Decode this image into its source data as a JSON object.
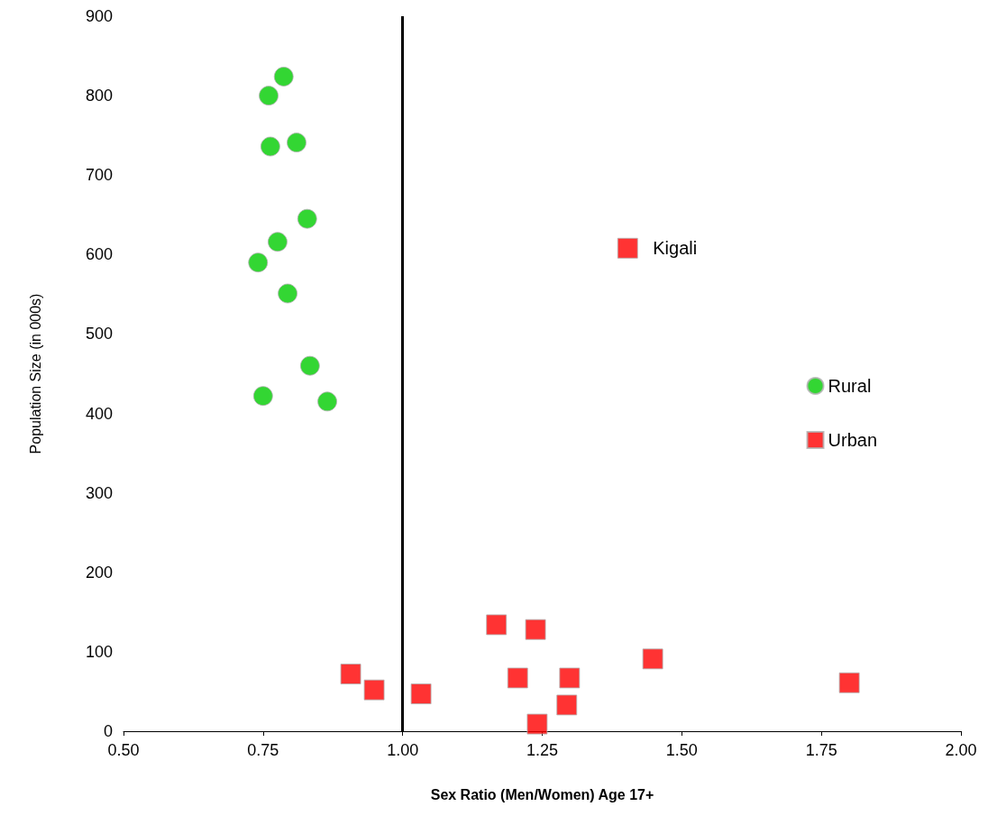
{
  "chart_data": {
    "type": "scatter",
    "xlabel": "Sex Ratio (Men/Women) Age 17+",
    "ylabel": "Population Size (in 000s)",
    "xlim": [
      0.5,
      2.0
    ],
    "xticks": [
      {
        "value": 0.5,
        "label": "0.50"
      },
      {
        "value": 0.75,
        "label": "0.75"
      },
      {
        "value": 1.0,
        "label": "1.00"
      },
      {
        "value": 1.25,
        "label": "1.25"
      },
      {
        "value": 1.5,
        "label": "1.50"
      },
      {
        "value": 1.75,
        "label": "1.75"
      },
      {
        "value": 2.0,
        "label": "2.00"
      }
    ],
    "ylim": [
      0,
      900
    ],
    "yticks": [
      0,
      100,
      200,
      300,
      400,
      500,
      600,
      700,
      800,
      900
    ],
    "grid": false,
    "legend": "right",
    "ref_lines": [
      {
        "axis": "x",
        "value": 1.0,
        "color": "#000000"
      }
    ],
    "series": [
      {
        "name": "Rural",
        "color": "#00cc00",
        "marker": "circle",
        "x": [
          0.787,
          0.76,
          0.763,
          0.81,
          0.829,
          0.776,
          0.741,
          0.794,
          0.834,
          0.75,
          0.865
        ],
        "values": [
          824,
          800,
          736,
          741,
          645,
          616,
          590,
          551,
          460,
          422,
          415
        ]
      },
      {
        "name": "Urban",
        "color": "#ff0000",
        "marker": "square",
        "x": [
          1.403,
          0.907,
          0.949,
          1.033,
          1.168,
          1.238,
          1.206,
          1.299,
          1.294,
          1.241,
          1.448,
          1.8
        ],
        "values": [
          608,
          72,
          52,
          47,
          134,
          128,
          67,
          67,
          33,
          9,
          91,
          61
        ]
      }
    ],
    "annotations": [
      {
        "text": "Kigali",
        "x": 1.403,
        "y": 608
      }
    ]
  }
}
